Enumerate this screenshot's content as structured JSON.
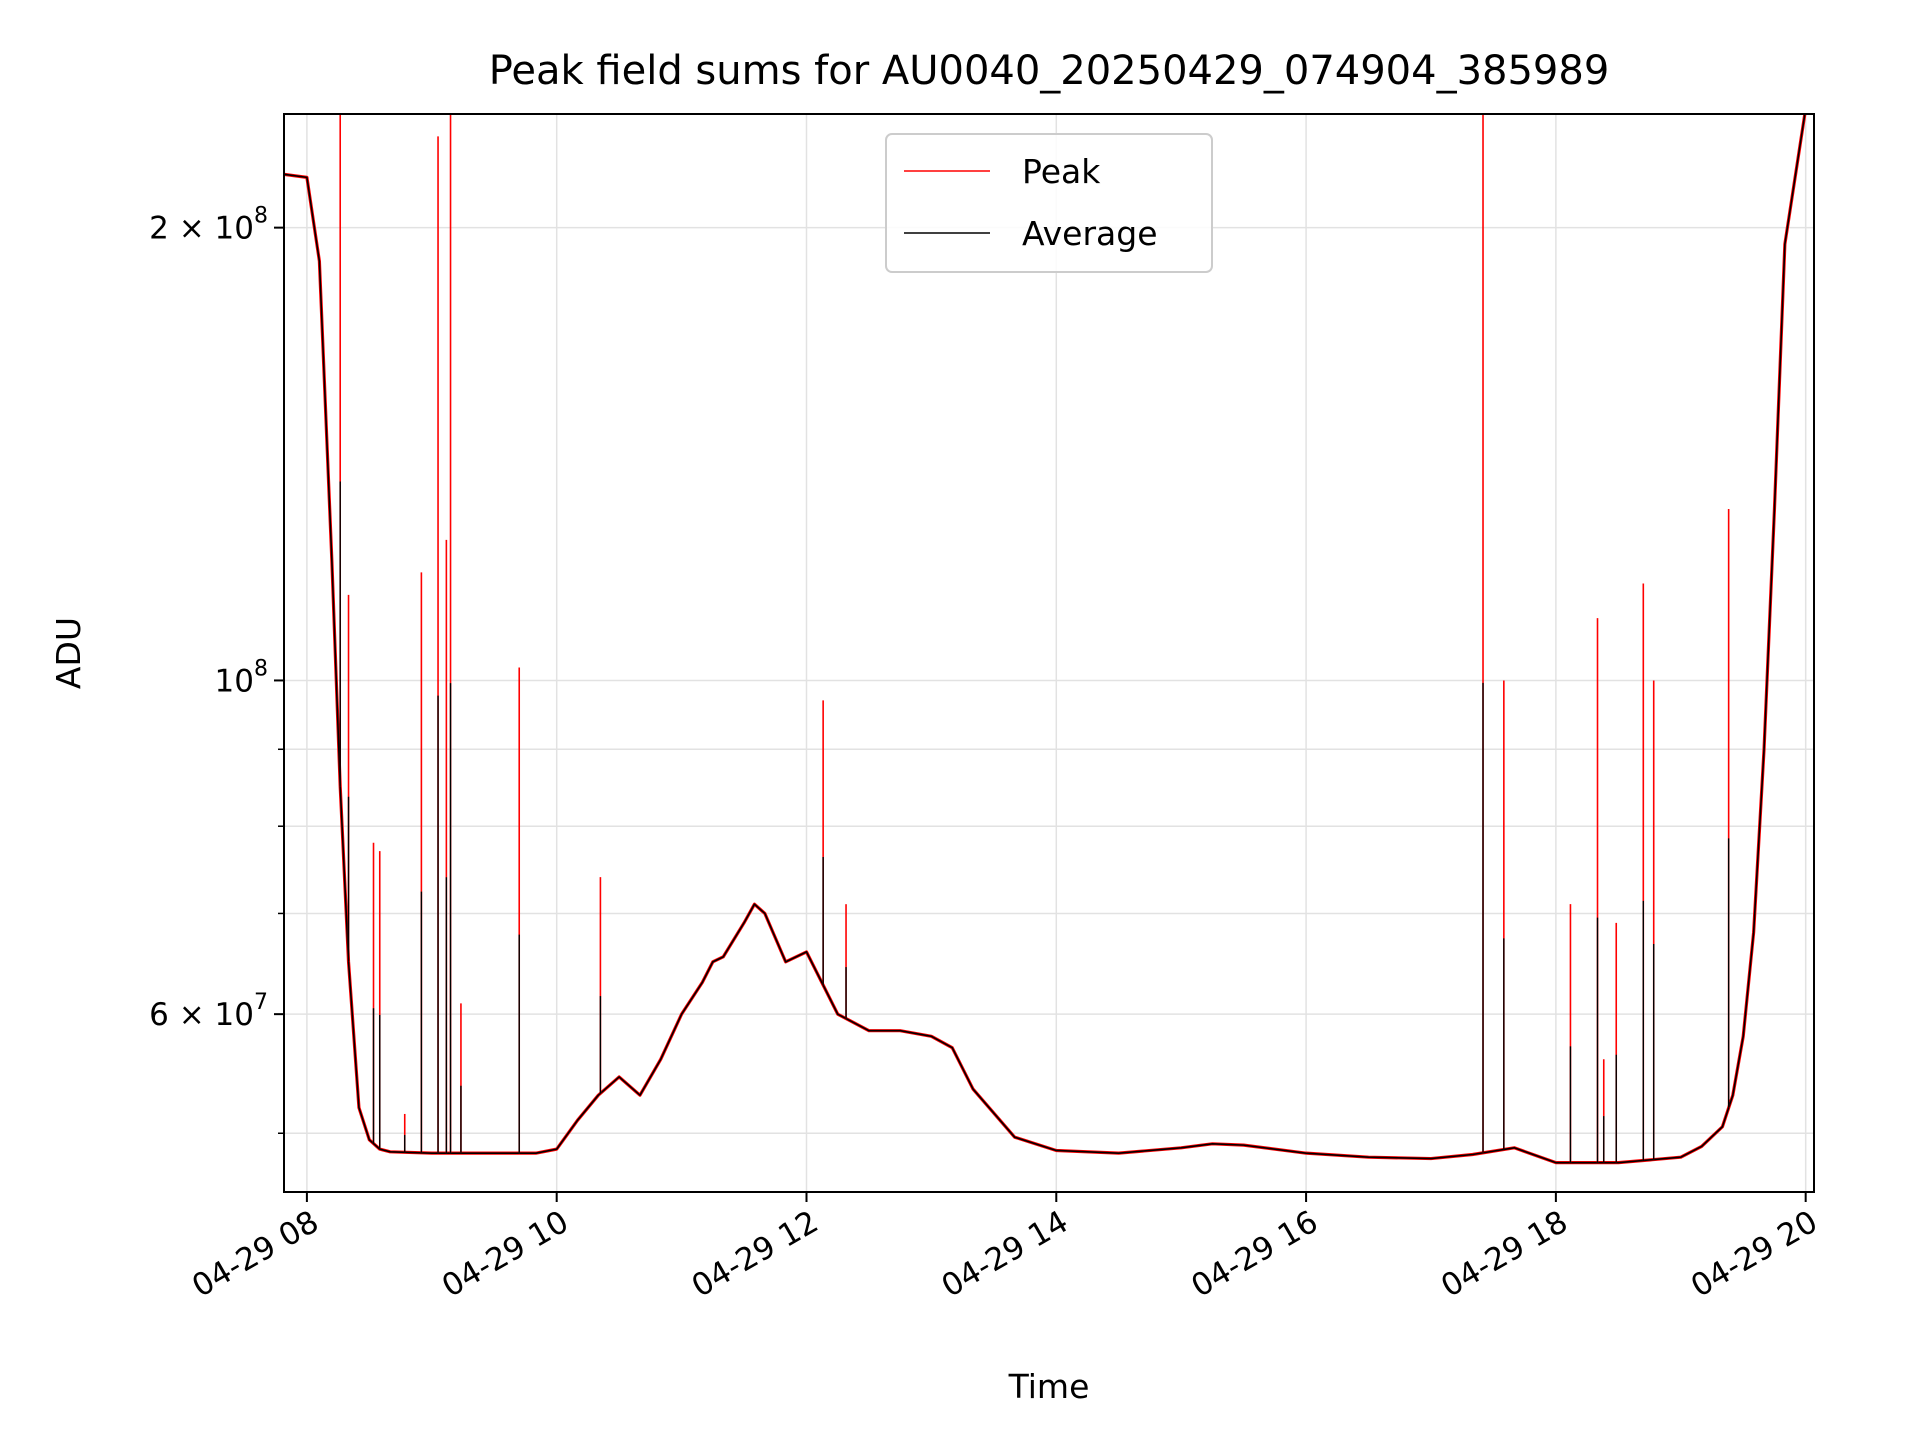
{
  "chart_data": {
    "type": "line",
    "title": "Peak field sums for AU0040_20250429_074904_385989",
    "xlabel": "Time",
    "ylabel": "ADU",
    "x_axis": {
      "type": "time",
      "range": [
        "2025-04-29 07:49",
        "2025-04-29 20:04"
      ]
    },
    "y_axis": {
      "type": "log",
      "range": [
        45700000,
        238000000
      ]
    },
    "x_ticks": [
      {
        "value": "2025-04-29 08:00",
        "label": "04-29 08"
      },
      {
        "value": "2025-04-29 10:00",
        "label": "04-29 10"
      },
      {
        "value": "2025-04-29 12:00",
        "label": "04-29 12"
      },
      {
        "value": "2025-04-29 14:00",
        "label": "04-29 14"
      },
      {
        "value": "2025-04-29 16:00",
        "label": "04-29 16"
      },
      {
        "value": "2025-04-29 18:00",
        "label": "04-29 18"
      },
      {
        "value": "2025-04-29 20:00",
        "label": "04-29 20"
      }
    ],
    "y_major_ticks": [
      {
        "value": 60000000,
        "label_base": "6 × 10",
        "label_exp": "7"
      },
      {
        "value": 100000000,
        "label_base": "10",
        "label_exp": "8"
      },
      {
        "value": 200000000,
        "label_base": "2 × 10",
        "label_exp": "8"
      }
    ],
    "y_minor_ticks": [
      50000000,
      70000000,
      80000000,
      90000000
    ],
    "grid": true,
    "legend": {
      "placement": "upper center",
      "entries": [
        {
          "name": "Peak",
          "color": "#ff0000"
        },
        {
          "name": "Average",
          "color": "#000000"
        }
      ]
    },
    "series": [
      {
        "name": "Average",
        "color": "#000000",
        "x": [
          "2025-04-29 07:49",
          "2025-04-29 08:00",
          "2025-04-29 08:06",
          "2025-04-29 08:12",
          "2025-04-29 08:16",
          "2025-04-29 08:20",
          "2025-04-29 08:25",
          "2025-04-29 08:30",
          "2025-04-29 08:35",
          "2025-04-29 08:40",
          "2025-04-29 09:00",
          "2025-04-29 09:30",
          "2025-04-29 09:50",
          "2025-04-29 10:00",
          "2025-04-29 10:10",
          "2025-04-29 10:20",
          "2025-04-29 10:30",
          "2025-04-29 10:40",
          "2025-04-29 10:50",
          "2025-04-29 11:00",
          "2025-04-29 11:10",
          "2025-04-29 11:15",
          "2025-04-29 11:20",
          "2025-04-29 11:30",
          "2025-04-29 11:35",
          "2025-04-29 11:40",
          "2025-04-29 11:50",
          "2025-04-29 12:00",
          "2025-04-29 12:15",
          "2025-04-29 12:30",
          "2025-04-29 12:45",
          "2025-04-29 13:00",
          "2025-04-29 13:10",
          "2025-04-29 13:20",
          "2025-04-29 13:40",
          "2025-04-29 14:00",
          "2025-04-29 14:30",
          "2025-04-29 15:00",
          "2025-04-29 15:15",
          "2025-04-29 15:30",
          "2025-04-29 16:00",
          "2025-04-29 16:30",
          "2025-04-29 17:00",
          "2025-04-29 17:20",
          "2025-04-29 17:40",
          "2025-04-29 18:00",
          "2025-04-29 18:30",
          "2025-04-29 19:00",
          "2025-04-29 19:10",
          "2025-04-29 19:20",
          "2025-04-29 19:25",
          "2025-04-29 19:30",
          "2025-04-29 19:35",
          "2025-04-29 19:40",
          "2025-04-29 19:45",
          "2025-04-29 19:50",
          "2025-04-29 20:00",
          "2025-04-29 20:04"
        ],
        "y": [
          217000000,
          216000000,
          190000000,
          120000000,
          85000000,
          65000000,
          52000000,
          49500000,
          48800000,
          48600000,
          48500000,
          48500000,
          48500000,
          48800000,
          51000000,
          53000000,
          54500000,
          53000000,
          56000000,
          60000000,
          63000000,
          65000000,
          65500000,
          69000000,
          71000000,
          70000000,
          65000000,
          66000000,
          60000000,
          58500000,
          58500000,
          58000000,
          57000000,
          53500000,
          49700000,
          48700000,
          48500000,
          48900000,
          49200000,
          49100000,
          48500000,
          48200000,
          48100000,
          48400000,
          48900000,
          47800000,
          47800000,
          48200000,
          49000000,
          50500000,
          53000000,
          58000000,
          68000000,
          90000000,
          130000000,
          195000000,
          240000000,
          240000000
        ]
      },
      {
        "name": "Peak",
        "color": "#ff0000",
        "spikes": [
          {
            "x": "2025-04-29 08:16",
            "y": 240000000
          },
          {
            "x": "2025-04-29 08:20",
            "y": 114000000
          },
          {
            "x": "2025-04-29 08:32",
            "y": 78000000
          },
          {
            "x": "2025-04-29 08:35",
            "y": 77000000
          },
          {
            "x": "2025-04-29 08:47",
            "y": 51500000
          },
          {
            "x": "2025-04-29 08:55",
            "y": 118000000
          },
          {
            "x": "2025-04-29 09:03",
            "y": 230000000
          },
          {
            "x": "2025-04-29 09:07",
            "y": 124000000
          },
          {
            "x": "2025-04-29 09:09",
            "y": 240000000
          },
          {
            "x": "2025-04-29 09:14",
            "y": 61000000
          },
          {
            "x": "2025-04-29 09:42",
            "y": 102000000
          },
          {
            "x": "2025-04-29 10:21",
            "y": 74000000
          },
          {
            "x": "2025-04-29 12:08",
            "y": 97000000
          },
          {
            "x": "2025-04-29 12:19",
            "y": 71000000
          },
          {
            "x": "2025-04-29 17:25",
            "y": 240000000
          },
          {
            "x": "2025-04-29 17:35",
            "y": 100000000
          },
          {
            "x": "2025-04-29 18:07",
            "y": 71000000
          },
          {
            "x": "2025-04-29 18:20",
            "y": 110000000
          },
          {
            "x": "2025-04-29 18:23",
            "y": 56000000
          },
          {
            "x": "2025-04-29 18:29",
            "y": 69000000
          },
          {
            "x": "2025-04-29 18:42",
            "y": 116000000
          },
          {
            "x": "2025-04-29 18:47",
            "y": 100000000
          },
          {
            "x": "2025-04-29 19:23",
            "y": 130000000
          }
        ]
      }
    ]
  }
}
